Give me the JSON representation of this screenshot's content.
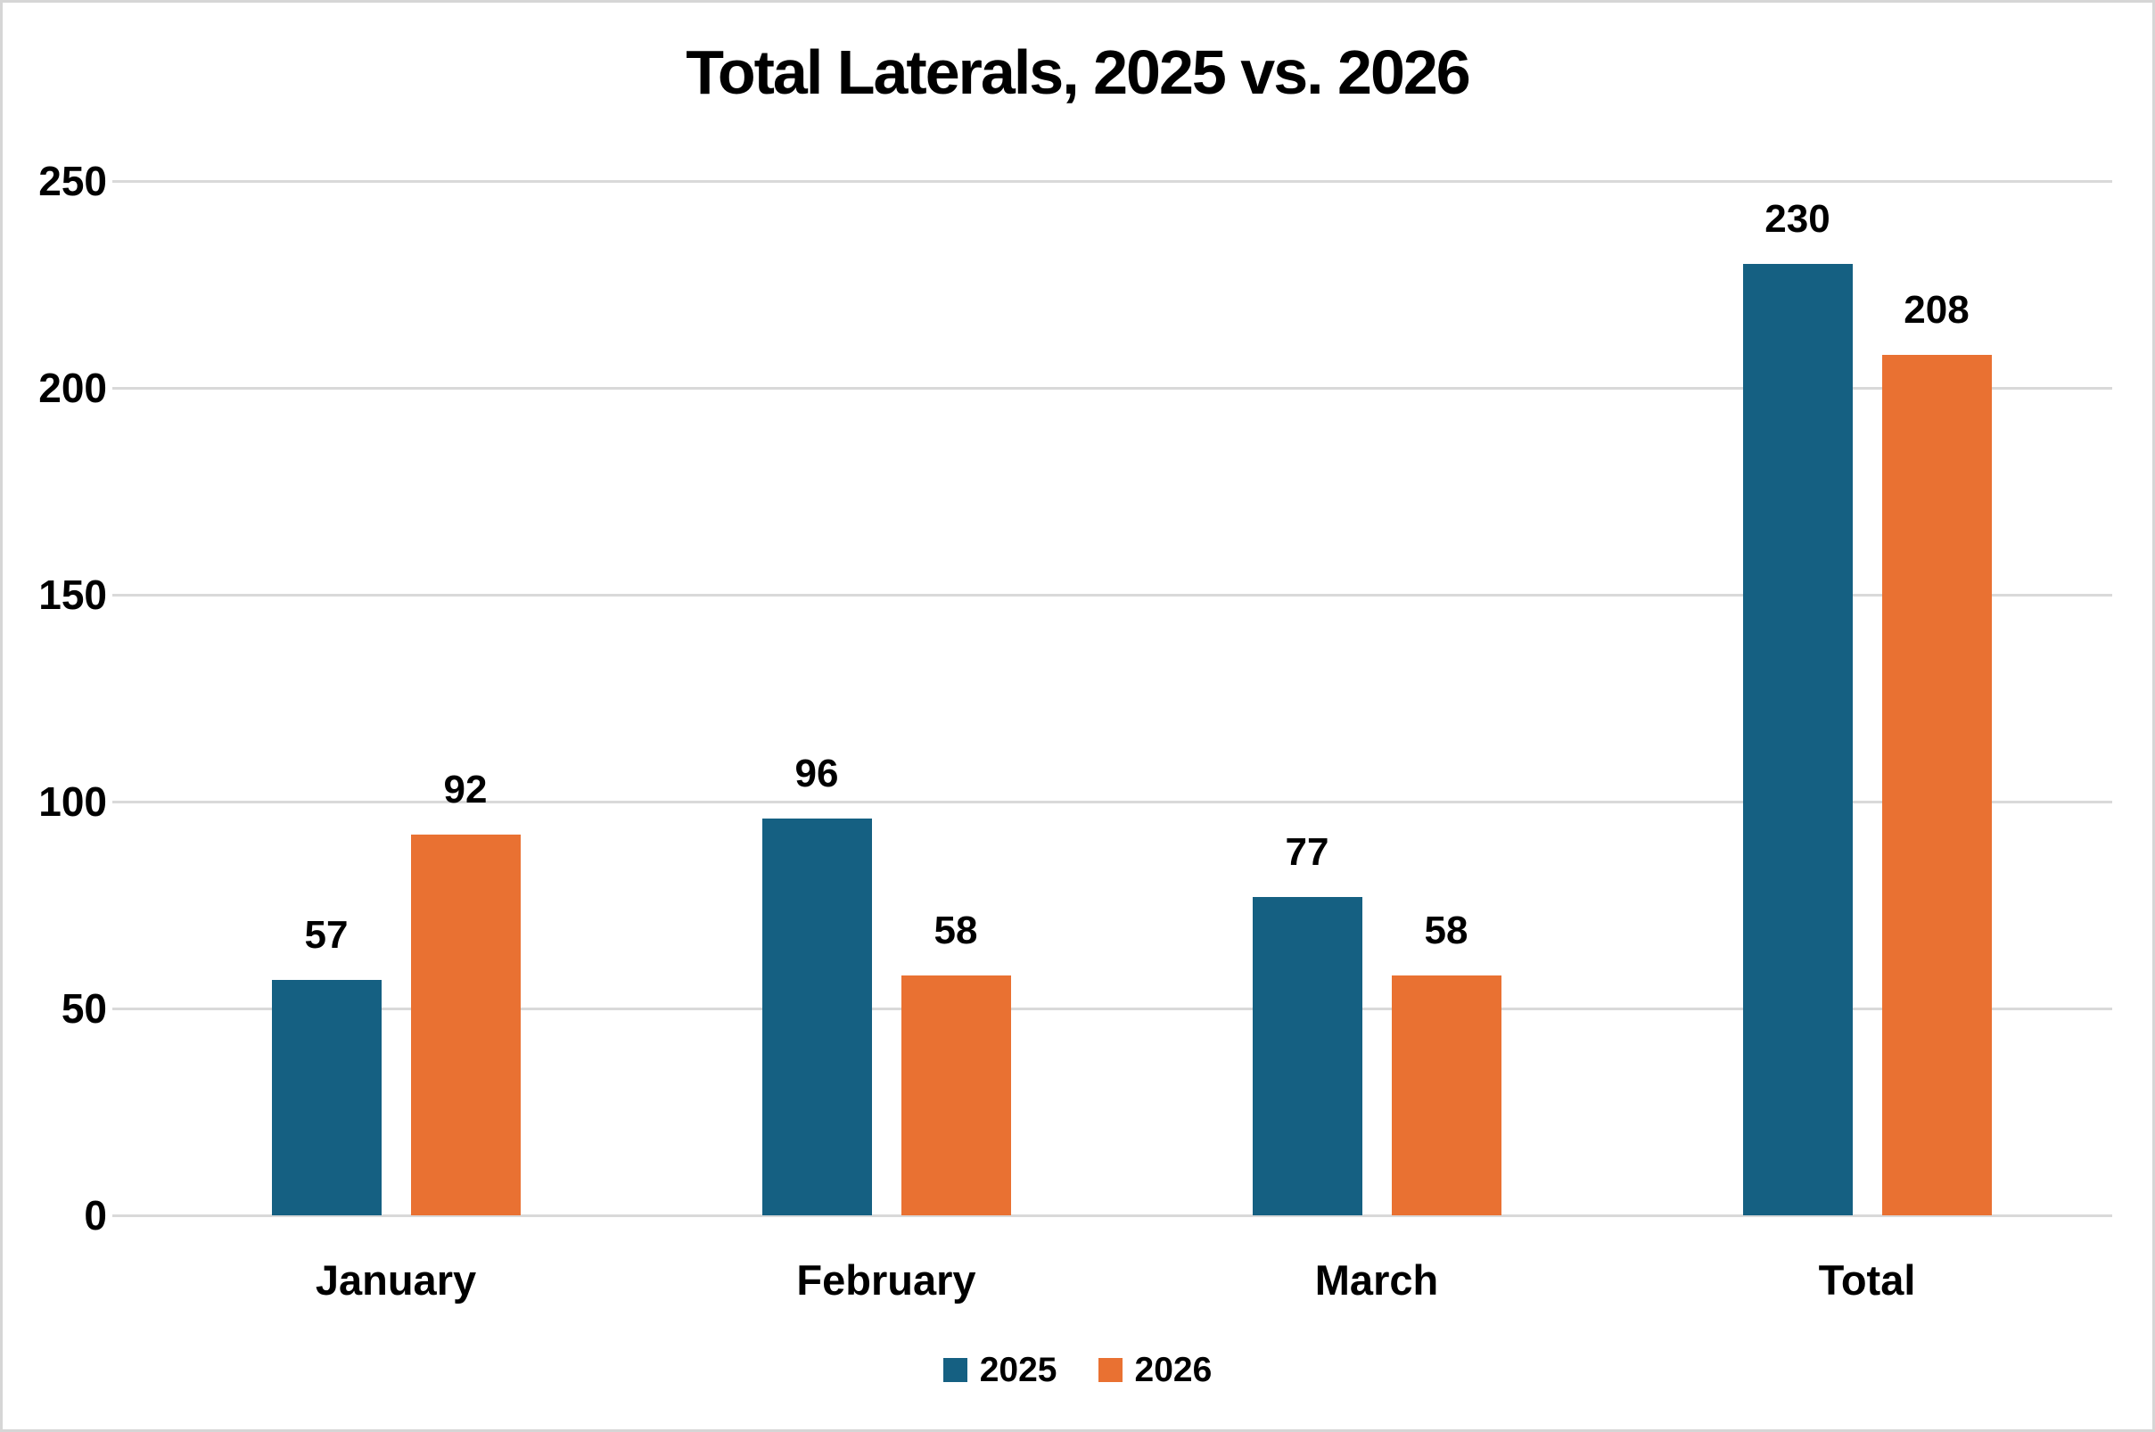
{
  "chart_data": {
    "type": "bar",
    "title": "Total Laterals, 2025 vs. 2026",
    "categories": [
      "January",
      "February",
      "March",
      "Total"
    ],
    "series": [
      {
        "name": "2025",
        "color": "#156082",
        "values": [
          57,
          96,
          77,
          230
        ]
      },
      {
        "name": "2026",
        "color": "#E97132",
        "values": [
          92,
          58,
          58,
          208
        ]
      }
    ],
    "xlabel": "",
    "ylabel": "",
    "ylim": [
      0,
      250
    ],
    "yticks": [
      0,
      50,
      100,
      150,
      200,
      250
    ],
    "grid": "horizontal",
    "legend_position": "bottom",
    "data_labels": "outside-end"
  },
  "colors": {
    "background": "#FFFFFF",
    "border": "#D6D6D6",
    "gridline": "#D9D9D9",
    "text": "#000000"
  }
}
